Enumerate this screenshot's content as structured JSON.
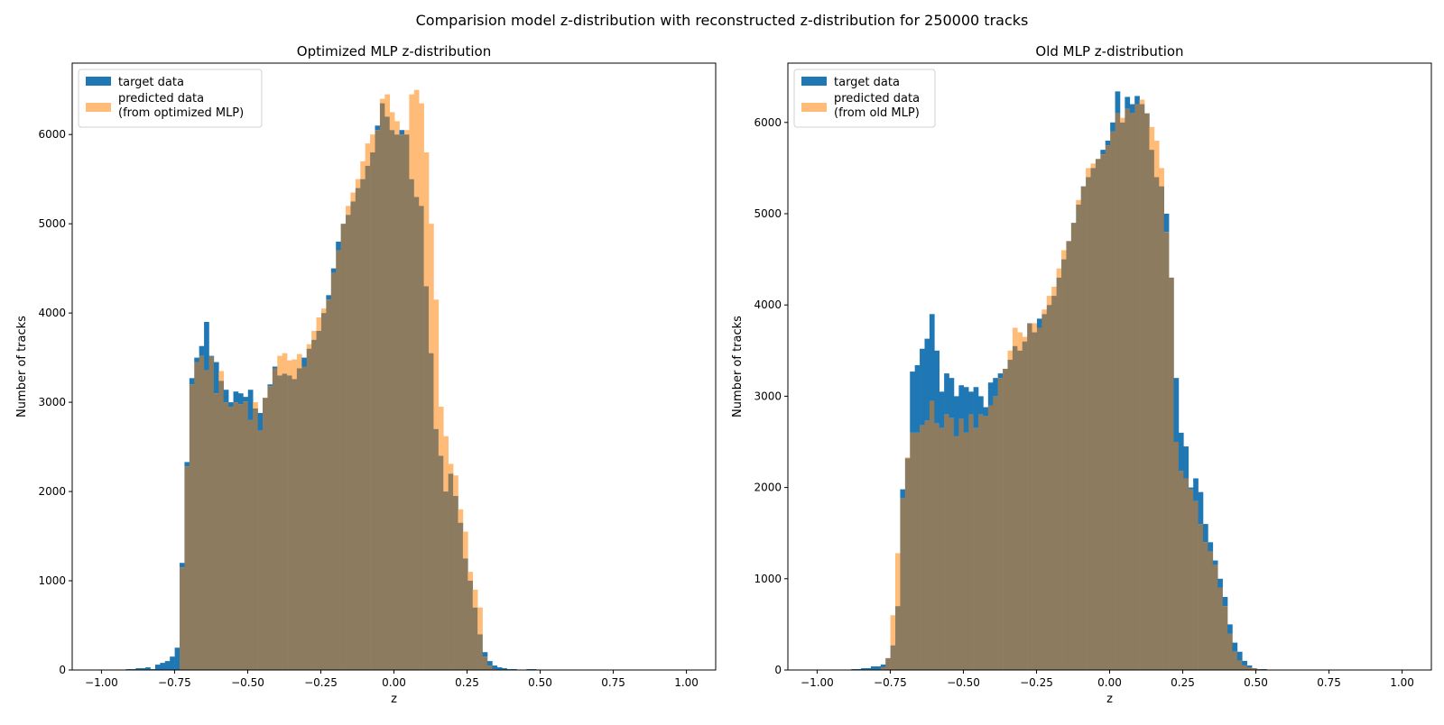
{
  "suptitle": "Comparision model z-distribution with reconstructed z-distribution for 250000 tracks",
  "colors": {
    "target": "#1f77b4",
    "predicted": "#ffbb78",
    "overlap": "#8c7b5f"
  },
  "chart_data": [
    {
      "type": "bar",
      "title": "Optimized MLP z-distribution",
      "xlabel": "z",
      "ylabel": "Number of tracks",
      "xlim": [
        -1.1,
        1.1
      ],
      "ylim": [
        0,
        6800
      ],
      "xticks": [
        -1.0,
        -0.75,
        -0.5,
        -0.25,
        0.0,
        0.25,
        0.5,
        0.75,
        1.0
      ],
      "xtick_labels": [
        "−1.00",
        "−0.75",
        "−0.50",
        "−0.25",
        "0.00",
        "0.25",
        "0.50",
        "0.75",
        "1.00"
      ],
      "yticks": [
        0,
        1000,
        2000,
        3000,
        4000,
        5000,
        6000
      ],
      "ytick_labels": [
        "0",
        "1000",
        "2000",
        "3000",
        "4000",
        "5000",
        "6000"
      ],
      "legend_position": "top-left",
      "bin_start": -1.0,
      "bin_width": 0.0167,
      "series": [
        {
          "name": "target data",
          "color": "#1f77b4",
          "values": [
            0,
            0,
            0,
            0,
            0,
            10,
            10,
            20,
            20,
            30,
            10,
            60,
            80,
            100,
            150,
            250,
            1200,
            2330,
            3270,
            3500,
            3630,
            3900,
            3520,
            3450,
            3240,
            3140,
            3000,
            3120,
            3100,
            3060,
            3140,
            2930,
            2880,
            3050,
            3200,
            3400,
            3300,
            3320,
            3300,
            3260,
            3380,
            3500,
            3600,
            3700,
            3800,
            4000,
            4200,
            4500,
            4800,
            5000,
            5100,
            5250,
            5400,
            5500,
            5650,
            5800,
            6100,
            6350,
            6200,
            6050,
            6000,
            6050,
            6000,
            5500,
            5300,
            5200,
            4300,
            3550,
            2700,
            2400,
            2000,
            2200,
            1950,
            1650,
            1250,
            1000,
            700,
            400,
            200,
            100,
            50,
            30,
            20,
            10,
            10,
            0,
            0,
            10,
            10,
            0,
            0,
            0,
            0,
            0,
            0,
            0,
            0,
            0,
            0,
            0,
            0,
            0,
            0,
            0,
            0,
            0,
            0,
            0,
            0,
            0,
            0,
            0,
            0,
            0,
            0,
            0,
            0,
            0,
            0,
            0
          ],
          "note": ""
        },
        {
          "name": "predicted data\n(from optimized MLP)",
          "color": "#ffbb78",
          "values": [
            0,
            0,
            0,
            0,
            0,
            0,
            0,
            0,
            0,
            0,
            0,
            0,
            0,
            0,
            0,
            0,
            1150,
            2280,
            3200,
            3450,
            3520,
            3360,
            3510,
            3100,
            3350,
            3000,
            2950,
            3000,
            2980,
            3010,
            2800,
            3000,
            2680,
            3050,
            3180,
            3380,
            3520,
            3550,
            3470,
            3480,
            3540,
            3400,
            3650,
            3800,
            3950,
            4050,
            4150,
            4450,
            4700,
            5000,
            5200,
            5350,
            5500,
            5700,
            5900,
            6000,
            6050,
            6400,
            6450,
            6250,
            6150,
            6000,
            6050,
            6450,
            6500,
            6350,
            5800,
            5000,
            4150,
            2950,
            2620,
            2310,
            2180,
            1800,
            1550,
            1100,
            900,
            700,
            150,
            50,
            10,
            0,
            0,
            0,
            0,
            0,
            0,
            0,
            0,
            0,
            0,
            0,
            0,
            0,
            0,
            0,
            0,
            0,
            0,
            0,
            0,
            0,
            0,
            0,
            0,
            0,
            0,
            0,
            0,
            0,
            0,
            0,
            0,
            0,
            0,
            0,
            0,
            0,
            0,
            0
          ],
          "note": ""
        }
      ]
    },
    {
      "type": "bar",
      "title": "Old MLP z-distribution",
      "xlabel": "z",
      "ylabel": "Number of tracks",
      "xlim": [
        -1.1,
        1.1
      ],
      "ylim": [
        0,
        6650
      ],
      "xticks": [
        -1.0,
        -0.75,
        -0.5,
        -0.25,
        0.0,
        0.25,
        0.5,
        0.75,
        1.0
      ],
      "xtick_labels": [
        "−1.00",
        "−0.75",
        "−0.50",
        "−0.25",
        "0.00",
        "0.25",
        "0.50",
        "0.75",
        "1.00"
      ],
      "yticks": [
        0,
        1000,
        2000,
        3000,
        4000,
        5000,
        6000
      ],
      "ytick_labels": [
        "0",
        "1000",
        "2000",
        "3000",
        "4000",
        "5000",
        "6000"
      ],
      "legend_position": "top-left",
      "bin_start": -1.0,
      "bin_width": 0.0167,
      "series": [
        {
          "name": "target data",
          "color": "#1f77b4",
          "values": [
            0,
            0,
            0,
            0,
            0,
            0,
            0,
            10,
            10,
            20,
            20,
            40,
            40,
            60,
            130,
            270,
            700,
            1980,
            2320,
            3270,
            3340,
            3520,
            3630,
            3900,
            3500,
            3050,
            3250,
            3200,
            3000,
            3120,
            3100,
            3050,
            3100,
            3000,
            2880,
            3150,
            3200,
            3250,
            3300,
            3400,
            3550,
            3500,
            3600,
            3800,
            3700,
            3850,
            3900,
            4000,
            4100,
            4300,
            4500,
            4700,
            4900,
            5100,
            5300,
            5400,
            5500,
            5600,
            5700,
            5800,
            6000,
            6340,
            6000,
            6280,
            6200,
            6290,
            6200,
            6100,
            5700,
            5400,
            5300,
            5000,
            4300,
            3200,
            2600,
            2450,
            2000,
            2100,
            1950,
            1600,
            1400,
            1200,
            1000,
            800,
            500,
            300,
            200,
            100,
            50,
            20,
            10,
            10,
            0,
            0,
            0,
            0,
            0,
            0,
            0,
            0,
            0,
            0,
            0,
            0,
            0,
            0,
            0,
            0,
            0,
            0,
            0,
            0,
            0,
            0,
            0,
            0,
            0,
            0,
            0,
            0
          ],
          "note": ""
        },
        {
          "name": "predicted data\n(from old MLP)",
          "color": "#ffbb78",
          "values": [
            0,
            0,
            0,
            0,
            0,
            0,
            0,
            0,
            0,
            0,
            0,
            0,
            0,
            30,
            130,
            600,
            1280,
            1880,
            2330,
            2600,
            2600,
            2680,
            2730,
            2950,
            2700,
            2650,
            2800,
            2760,
            2560,
            2750,
            2600,
            2800,
            2650,
            2800,
            2780,
            2900,
            3000,
            3200,
            3300,
            3500,
            3750,
            3700,
            3650,
            3800,
            3800,
            3750,
            3950,
            4100,
            4200,
            4400,
            4600,
            4700,
            4900,
            5150,
            5300,
            5500,
            5550,
            5600,
            5650,
            5750,
            5900,
            6100,
            6050,
            6150,
            6100,
            6200,
            6250,
            6100,
            5950,
            5800,
            5500,
            4800,
            4300,
            2500,
            2180,
            2100,
            1980,
            1850,
            1600,
            1400,
            1300,
            1150,
            900,
            700,
            400,
            200,
            100,
            50,
            30,
            20,
            10,
            0,
            0,
            0,
            0,
            0,
            0,
            0,
            0,
            0,
            0,
            0,
            0,
            0,
            0,
            0,
            0,
            0,
            0,
            0,
            0,
            0,
            0,
            0,
            0,
            0,
            0,
            0,
            0,
            0
          ],
          "note": ""
        }
      ]
    }
  ]
}
